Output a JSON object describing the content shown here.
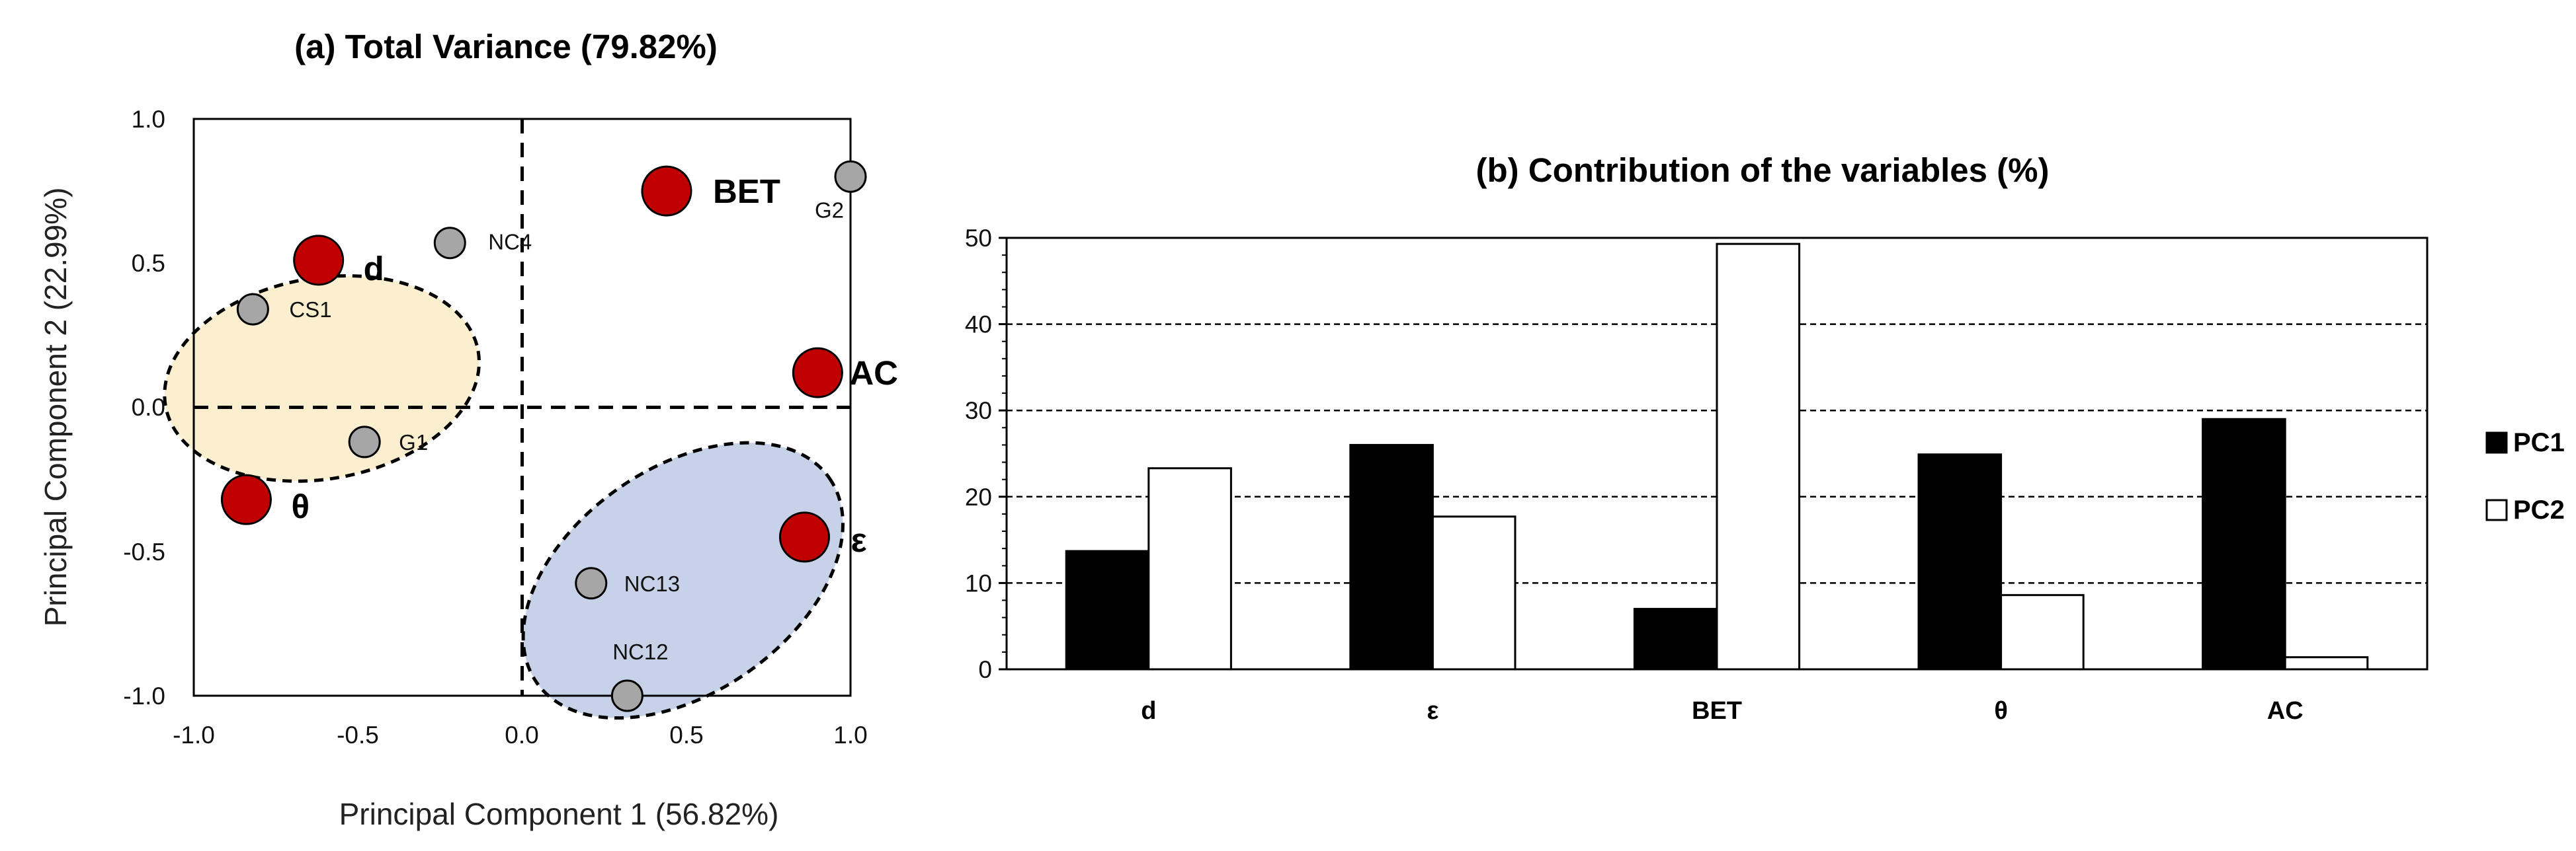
{
  "colors": {
    "variable_marker": "#c00000",
    "sample_marker": "#a6a6a6",
    "cluster_yellow": "#fbe9c0",
    "cluster_blue": "#b9c7e3",
    "pc1_bar": "#000000",
    "pc2_bar": "#ffffff"
  },
  "chart_data": [
    {
      "type": "scatter",
      "title": "(a) Total Variance (79.82%)",
      "xlabel": "Principal Component 1 (56.82%)",
      "ylabel": "Principal Component 2 (22.99%)",
      "xlim": [
        -1.0,
        1.0
      ],
      "ylim": [
        -1.0,
        1.0
      ],
      "xticks": [
        "-1.0",
        "-0.5",
        "0.0",
        "0.5",
        "1.0"
      ],
      "yticks": [
        "-1.0",
        "-0.5",
        "0.0",
        "0.5",
        "1.0"
      ],
      "variables": [
        {
          "label": "BET",
          "x": 0.44,
          "y": 0.75
        },
        {
          "label": "d",
          "x": -0.62,
          "y": 0.51
        },
        {
          "label": "AC",
          "x": 0.9,
          "y": 0.12
        },
        {
          "label": "θ",
          "x": -0.84,
          "y": -0.32
        },
        {
          "label": "ε",
          "x": 0.86,
          "y": -0.45
        }
      ],
      "samples": [
        {
          "label": "G2",
          "x": 1.0,
          "y": 0.8
        },
        {
          "label": "NC4",
          "x": -0.22,
          "y": 0.57
        },
        {
          "label": "CS1",
          "x": -0.82,
          "y": 0.34
        },
        {
          "label": "G1",
          "x": -0.48,
          "y": -0.12
        },
        {
          "label": "NC13",
          "x": 0.21,
          "y": -0.61
        },
        {
          "label": "NC12",
          "x": 0.32,
          "y": -1.0
        }
      ]
    },
    {
      "type": "bar",
      "title": "(b) Contribution of the variables (%)",
      "categories": [
        "d",
        "ε",
        "BET",
        "θ",
        "AC"
      ],
      "series": [
        {
          "name": "PC1",
          "values": [
            13.7,
            26.0,
            7.0,
            24.9,
            29.0
          ]
        },
        {
          "name": "PC2",
          "values": [
            23.3,
            17.7,
            49.3,
            8.6,
            1.4
          ]
        }
      ],
      "ylim": [
        0,
        50
      ],
      "yticks": [
        "0",
        "10",
        "20",
        "30",
        "40",
        "50"
      ],
      "grid": true,
      "legend_position": "right"
    }
  ]
}
